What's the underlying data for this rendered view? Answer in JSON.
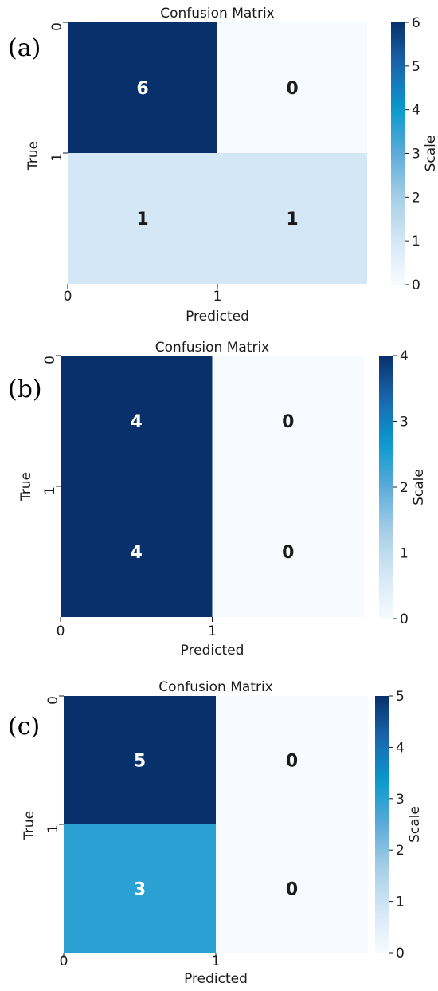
{
  "chart_data": [
    {
      "type": "heatmap",
      "panel_label": "(a)",
      "title": "Confusion Matrix",
      "xlabel": "Predicted",
      "ylabel": "True",
      "x_tick_labels": [
        "0",
        "1"
      ],
      "y_tick_labels": [
        "0",
        "1"
      ],
      "matrix": [
        [
          6,
          0
        ],
        [
          1,
          1
        ]
      ],
      "colorbar": {
        "label": "Scale",
        "min": 0,
        "max": 6,
        "ticks": [
          "0",
          "1",
          "2",
          "3",
          "4",
          "5",
          "6"
        ]
      },
      "colormap": "Blues"
    },
    {
      "type": "heatmap",
      "panel_label": "(b)",
      "title": "Confusion Matrix",
      "xlabel": "Predicted",
      "ylabel": "True",
      "x_tick_labels": [
        "0",
        "1"
      ],
      "y_tick_labels": [
        "0",
        "1"
      ],
      "matrix": [
        [
          4,
          0
        ],
        [
          4,
          0
        ]
      ],
      "colorbar": {
        "label": "Scale",
        "min": 0,
        "max": 4,
        "ticks": [
          "0",
          "1",
          "2",
          "3",
          "4"
        ]
      },
      "colormap": "Blues"
    },
    {
      "type": "heatmap",
      "panel_label": "(c)",
      "title": "Confusion Matrix",
      "xlabel": "Predicted",
      "ylabel": "True",
      "x_tick_labels": [
        "0",
        "1"
      ],
      "y_tick_labels": [
        "0",
        "1"
      ],
      "matrix": [
        [
          5,
          0
        ],
        [
          3,
          0
        ]
      ],
      "colorbar": {
        "label": "Scale",
        "min": 0,
        "max": 5,
        "ticks": [
          "0",
          "1",
          "2",
          "3",
          "4",
          "5"
        ]
      },
      "colormap": "Blues"
    }
  ],
  "colors": {
    "blues_stops": [
      "#f7fbff",
      "#d4e7f6",
      "#a6cfe6",
      "#5cabd9",
      "#099acd",
      "#1a68b0",
      "#08306b"
    ],
    "text_dark": "#1a1a1a",
    "text_light": "#ffffff"
  }
}
